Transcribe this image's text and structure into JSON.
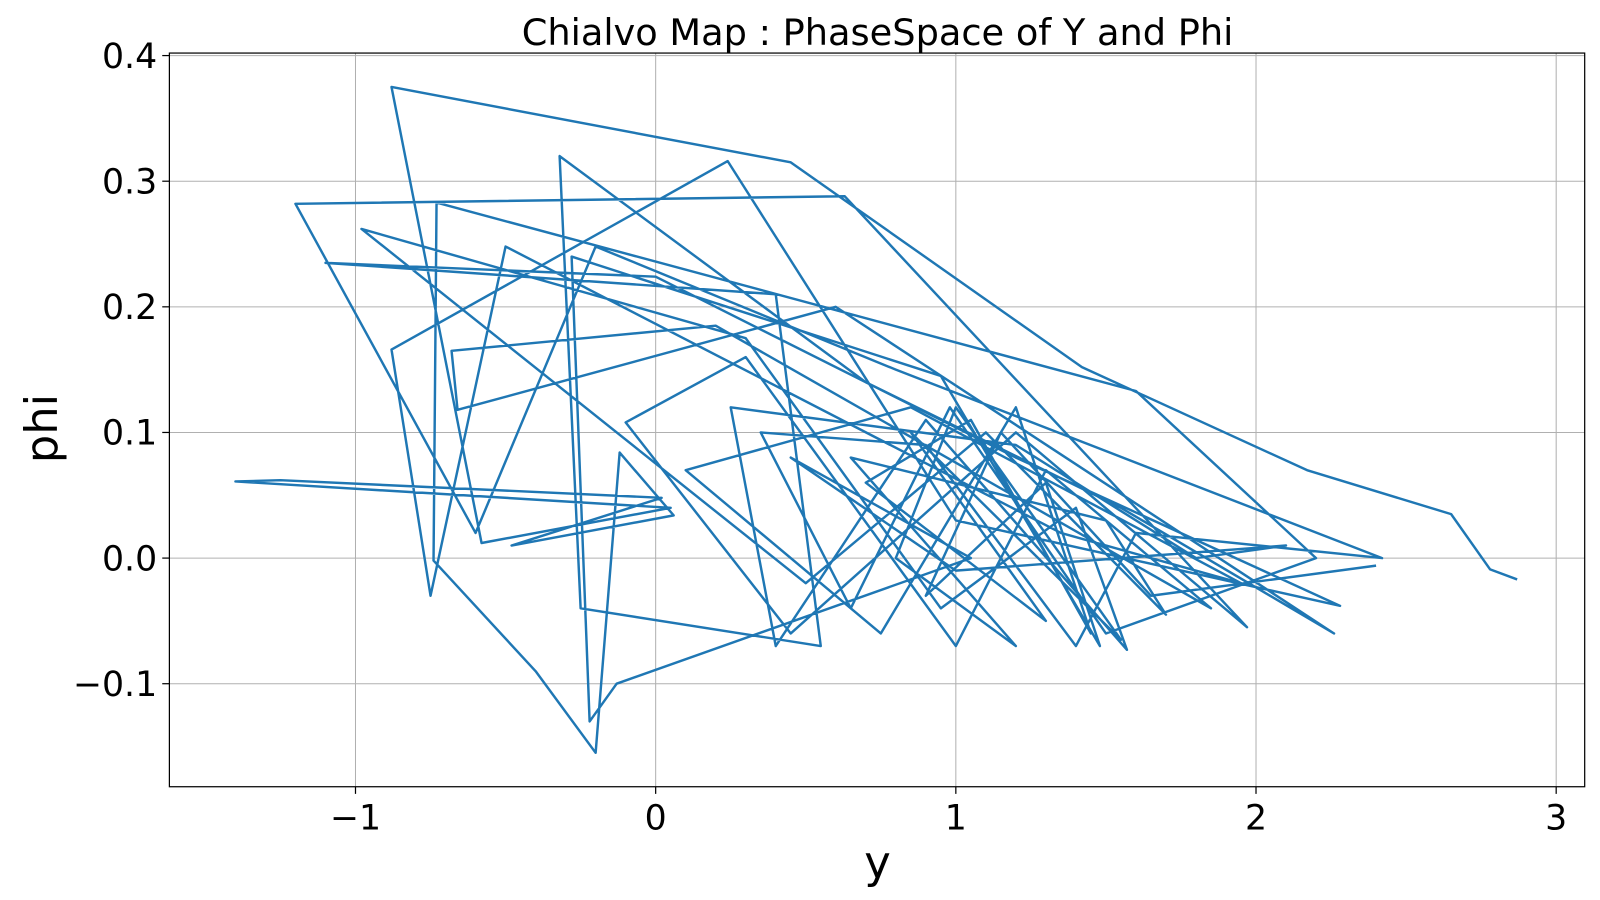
{
  "chart_data": {
    "type": "line",
    "title": "Chialvo Map : PhaseSpace of Y and Phi",
    "xlabel": "y",
    "ylabel": "phi",
    "xlim": [
      -1.62,
      3.095
    ],
    "ylim": [
      -0.182,
      0.402
    ],
    "xticks": [
      {
        "value": -1,
        "label": "−1"
      },
      0,
      1,
      2,
      3
    ],
    "yticks": [
      {
        "value": -0.1,
        "label": "−0.1"
      },
      {
        "value": 0,
        "label": "0.0"
      },
      0.1,
      0.2,
      0.3,
      0.4
    ],
    "grid": true,
    "series": [
      {
        "color": "#1f77b4",
        "x": [
          2.87,
          2.78,
          2.65,
          2.17,
          1.42,
          0.45,
          -0.88,
          -0.58,
          0.05,
          -1.4,
          -1.25,
          0.02,
          -0.48,
          0.06,
          -0.12,
          -0.2,
          -0.4,
          -0.74,
          -0.73,
          1.6,
          2.2,
          1.5,
          0.98,
          0.65,
          0.35,
          0.9,
          1.4,
          1.6,
          2.42,
          0.8,
          -0.2,
          -0.6,
          -1.2,
          0.63,
          1.97,
          1.2,
          0.45,
          -0.1,
          0.3,
          1.0,
          1.3,
          1.85,
          0.2,
          -0.68,
          -0.66,
          0.6,
          2.26,
          1.55,
          0.7,
          -0.32,
          -0.25,
          0.55,
          0.4,
          -1.1,
          0.0,
          1.2,
          2.28,
          1.0,
          0.24,
          -0.88,
          -0.75,
          -0.5,
          1.35,
          1.95,
          0.85,
          0.1,
          0.75,
          1.2,
          1.45,
          1.05,
          0.7,
          1.3,
          0.85,
          1.55,
          1.0,
          0.8,
          1.2,
          0.65,
          1.5,
          1.7,
          1.1,
          0.5,
          -0.98,
          0.3,
          0.95,
          1.4,
          1.57,
          0.9,
          0.4,
          0.25,
          1.2,
          1.8,
          2.1,
          1.0,
          0.45,
          1.05,
          -0.13,
          -0.22,
          -0.28,
          0.95,
          1.48,
          1.3,
          0.9,
          1.15,
          1.65,
          2.4
        ],
        "values": [
          -0.017,
          -0.009,
          0.035,
          0.07,
          0.152,
          0.315,
          0.375,
          0.012,
          0.04,
          0.061,
          0.062,
          0.048,
          0.01,
          0.034,
          0.084,
          -0.155,
          -0.09,
          -0.002,
          0.283,
          0.133,
          0.0,
          -0.06,
          0.12,
          -0.04,
          0.1,
          0.09,
          -0.07,
          0.02,
          0.0,
          0.15,
          0.248,
          0.02,
          0.282,
          0.288,
          -0.055,
          0.1,
          -0.06,
          0.108,
          0.16,
          -0.07,
          0.07,
          -0.04,
          0.185,
          0.165,
          0.118,
          0.2,
          -0.06,
          0.04,
          0.14,
          0.32,
          -0.04,
          -0.07,
          0.21,
          0.235,
          0.224,
          0.08,
          -0.038,
          0.03,
          0.316,
          0.166,
          -0.03,
          0.248,
          0.02,
          -0.02,
          0.12,
          0.07,
          -0.06,
          0.12,
          -0.06,
          0.11,
          0.06,
          -0.05,
          0.1,
          -0.065,
          0.12,
          0.0,
          -0.07,
          0.08,
          0.03,
          -0.045,
          0.1,
          -0.02,
          0.262,
          0.175,
          -0.04,
          0.04,
          -0.073,
          0.11,
          -0.07,
          0.12,
          0.09,
          0.0,
          0.01,
          -0.01,
          0.08,
          0.0,
          -0.1,
          -0.13,
          0.24,
          0.145,
          -0.07,
          0.06,
          -0.03,
          0.1,
          -0.03,
          -0.006
        ]
      }
    ]
  }
}
